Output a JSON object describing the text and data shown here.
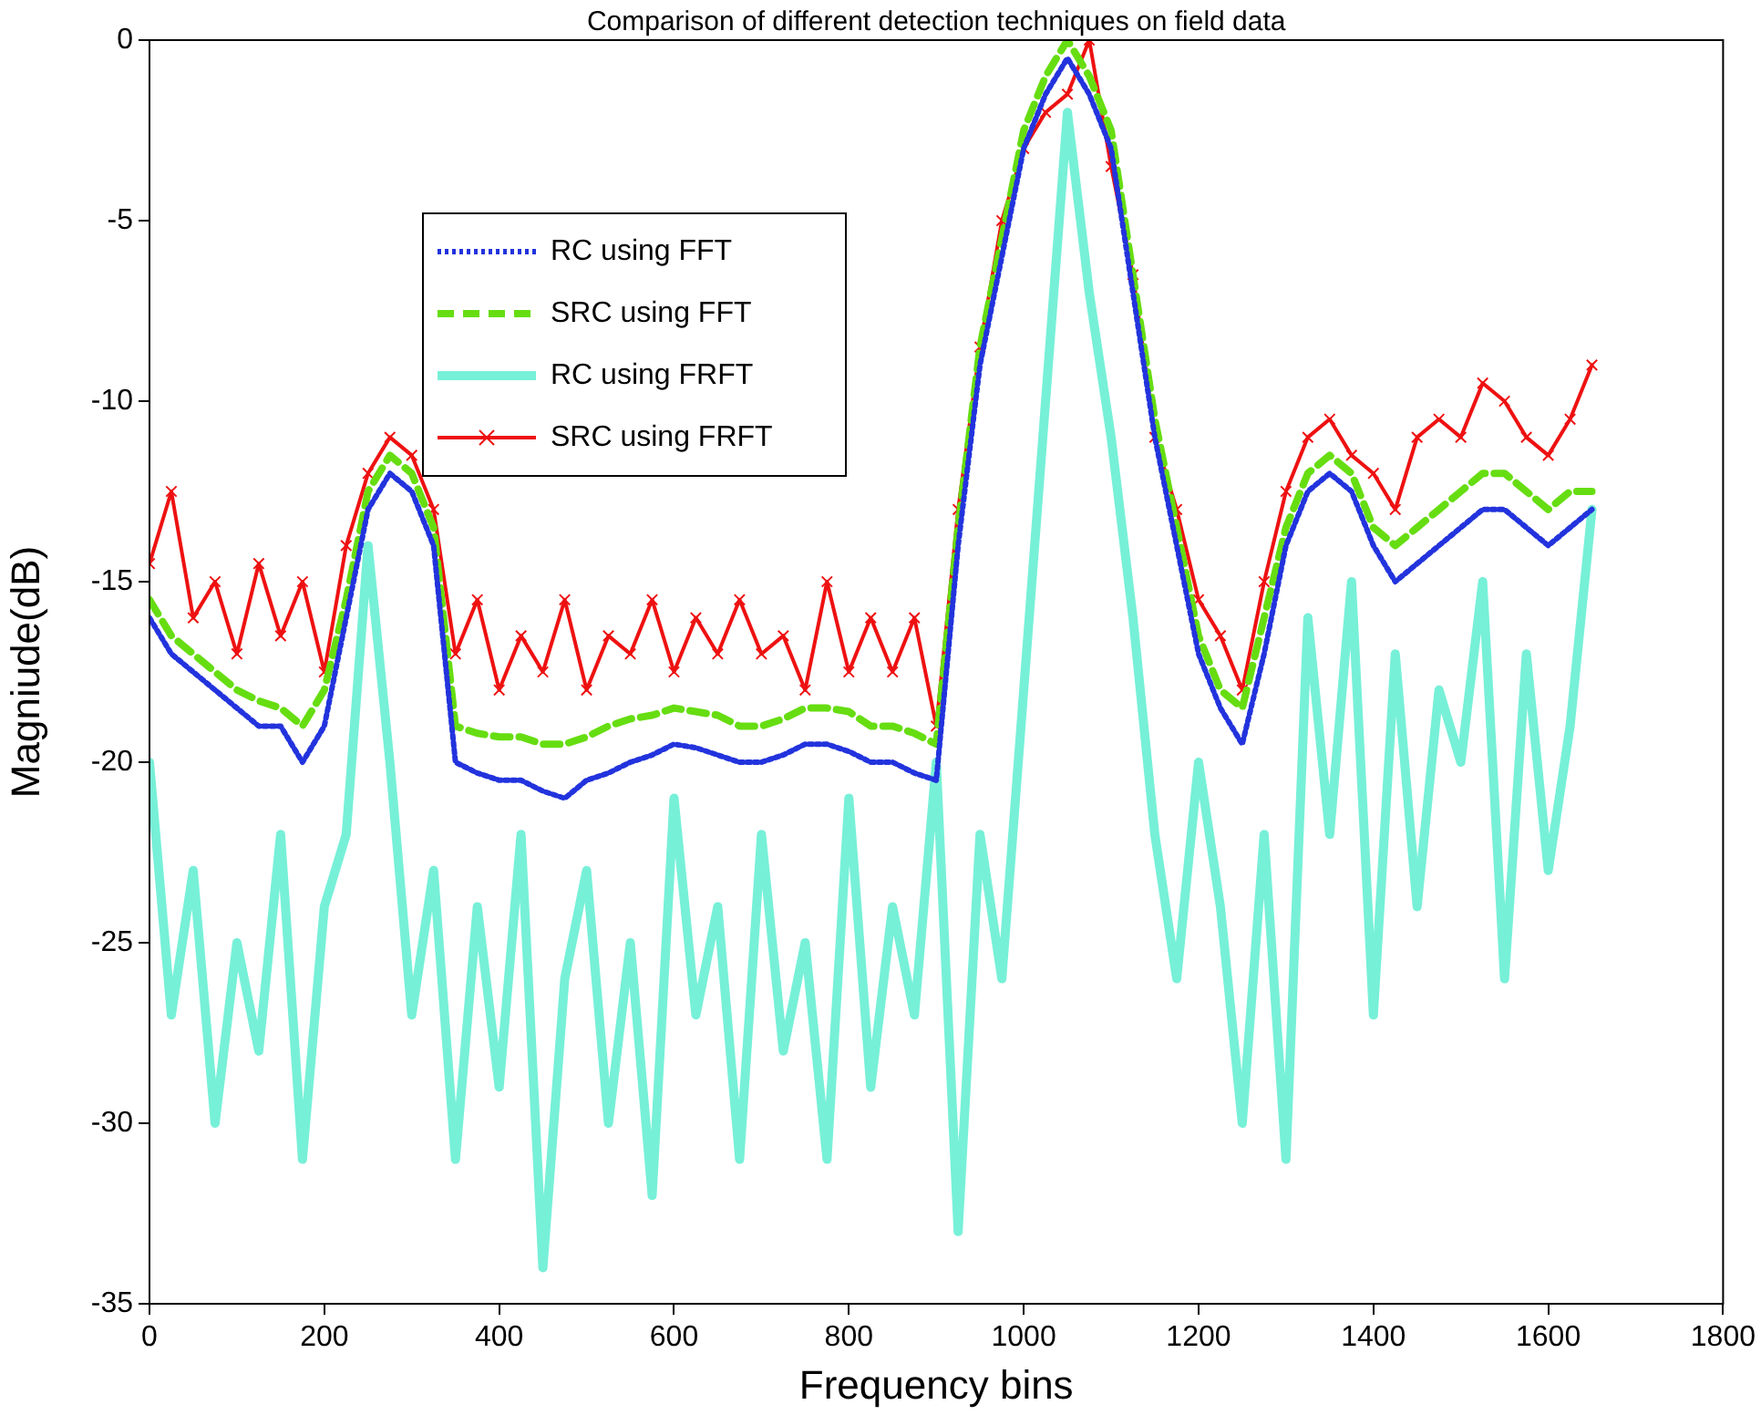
{
  "chart_data": {
    "type": "line",
    "title": "Comparison of different detection techniques on field data",
    "xlabel": "Frequency bins",
    "ylabel": "Magniude(dB)",
    "x": [
      0,
      25,
      50,
      75,
      100,
      125,
      150,
      175,
      200,
      225,
      250,
      275,
      300,
      325,
      350,
      375,
      400,
      425,
      450,
      475,
      500,
      525,
      550,
      575,
      600,
      625,
      650,
      675,
      700,
      725,
      750,
      775,
      800,
      825,
      850,
      875,
      900,
      925,
      950,
      975,
      1000,
      1025,
      1050,
      1075,
      1100,
      1125,
      1150,
      1175,
      1200,
      1225,
      1250,
      1275,
      1300,
      1325,
      1350,
      1375,
      1400,
      1425,
      1450,
      1475,
      1500,
      1525,
      1550,
      1575,
      1600,
      1625,
      1650
    ],
    "xlim": [
      0,
      1800
    ],
    "xticks": [
      0,
      200,
      400,
      600,
      800,
      1000,
      1200,
      1400,
      1600,
      1800
    ],
    "ylim": [
      -35,
      0
    ],
    "yticks": [
      -35,
      -30,
      -25,
      -20,
      -15,
      -10,
      -5,
      0
    ],
    "legend": "top left",
    "series": [
      {
        "name": "RC using FFT",
        "color": "#2233dd",
        "line_style": "dotted",
        "marker": "none",
        "values": [
          -16,
          -17,
          -17.5,
          -18,
          -18.5,
          -19,
          -19,
          -20,
          -19,
          -16,
          -13,
          -12,
          -12.5,
          -14,
          -20,
          -20.3,
          -20.5,
          -20.5,
          -20.8,
          -21,
          -20.5,
          -20.3,
          -20,
          -19.8,
          -19.5,
          -19.6,
          -19.8,
          -20,
          -20,
          -19.8,
          -19.5,
          -19.5,
          -19.7,
          -20,
          -20,
          -20.3,
          -20.5,
          -14,
          -9,
          -6,
          -3,
          -1.5,
          -0.5,
          -1.5,
          -3,
          -7,
          -11,
          -14,
          -17,
          -18.5,
          -19.5,
          -17,
          -14,
          -12.5,
          -12,
          -12.5,
          -14,
          -15,
          -14.5,
          -14,
          -13.5,
          -13,
          -13,
          -13.5,
          -14,
          -13.5,
          -13
        ]
      },
      {
        "name": "SRC using FFT",
        "color": "#66dd11",
        "line_style": "dashed",
        "marker": "none",
        "values": [
          -15.5,
          -16.5,
          -17,
          -17.5,
          -18,
          -18.3,
          -18.5,
          -19,
          -18,
          -15.5,
          -12.5,
          -11.5,
          -12,
          -13.5,
          -19,
          -19.2,
          -19.3,
          -19.3,
          -19.5,
          -19.5,
          -19.3,
          -19,
          -18.8,
          -18.7,
          -18.5,
          -18.6,
          -18.7,
          -19,
          -19,
          -18.8,
          -18.5,
          -18.5,
          -18.6,
          -19,
          -19,
          -19.2,
          -19.5,
          -13.5,
          -8.5,
          -5.5,
          -2.5,
          -1,
          0,
          -1,
          -2.5,
          -6.5,
          -10.5,
          -13.5,
          -16.5,
          -18,
          -18.5,
          -16,
          -13.5,
          -12,
          -11.5,
          -12,
          -13.5,
          -14,
          -13.5,
          -13,
          -12.5,
          -12,
          -12,
          -12.5,
          -13,
          -12.5,
          -12.5
        ]
      },
      {
        "name": "RC using FRFT",
        "color": "#77f0d8",
        "line_style": "solid",
        "marker": "none",
        "values": [
          -20,
          -27,
          -23,
          -30,
          -25,
          -28,
          -22,
          -31,
          -24,
          -22,
          -14,
          -20,
          -27,
          -23,
          -31,
          -24,
          -29,
          -22,
          -34,
          -26,
          -23,
          -30,
          -25,
          -32,
          -21,
          -27,
          -24,
          -31,
          -22,
          -28,
          -25,
          -31,
          -21,
          -29,
          -24,
          -27,
          -20,
          -33,
          -22,
          -26,
          -18,
          -10,
          -2,
          -7,
          -11,
          -16,
          -22,
          -26,
          -20,
          -24,
          -30,
          -22,
          -31,
          -16,
          -22,
          -15,
          -27,
          -17,
          -24,
          -18,
          -20,
          -15,
          -26,
          -17,
          -23,
          -19,
          -13
        ]
      },
      {
        "name": "SRC using FRFT",
        "color": "#ee1111",
        "line_style": "solid",
        "marker": "cross",
        "values": [
          -14.5,
          -12.5,
          -16,
          -15,
          -17,
          -14.5,
          -16.5,
          -15,
          -17.5,
          -14,
          -12,
          -11,
          -11.5,
          -13,
          -17,
          -15.5,
          -18,
          -16.5,
          -17.5,
          -15.5,
          -18,
          -16.5,
          -17,
          -15.5,
          -17.5,
          -16,
          -17,
          -15.5,
          -17,
          -16.5,
          -18,
          -15,
          -17.5,
          -16,
          -17.5,
          -16,
          -19,
          -13,
          -8.5,
          -5,
          -3,
          -2,
          -1.5,
          0,
          -3.5,
          -6.5,
          -11,
          -13,
          -15.5,
          -16.5,
          -18,
          -15,
          -12.5,
          -11,
          -10.5,
          -11.5,
          -12,
          -13,
          -11,
          -10.5,
          -11,
          -9.5,
          -10,
          -11,
          -11.5,
          -10.5,
          -9
        ]
      }
    ]
  }
}
